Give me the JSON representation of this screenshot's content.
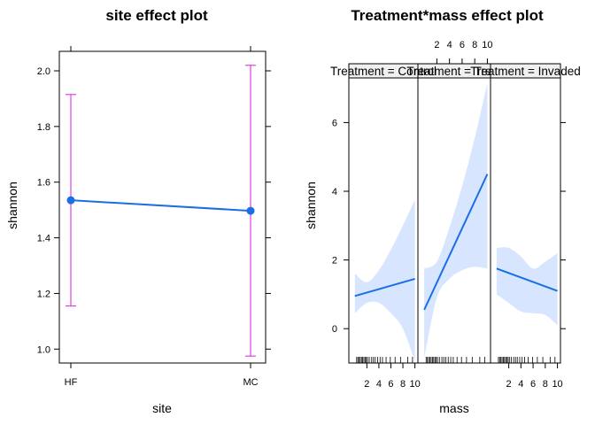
{
  "chart_data": [
    {
      "type": "line",
      "title": "site effect plot",
      "xlabel": "site",
      "ylabel": "shannon",
      "categories": [
        "HF",
        "MC"
      ],
      "series": [
        {
          "values": [
            1.535,
            1.497
          ],
          "lower": [
            1.155,
            0.975
          ],
          "upper": [
            1.915,
            2.02
          ]
        }
      ],
      "ylim": [
        0.95,
        2.07
      ],
      "yticks": [
        1.0,
        1.2,
        1.4,
        1.6,
        1.8,
        2.0
      ],
      "ytick_labels": [
        "1.0",
        "1.2",
        "1.4",
        "1.6",
        "1.8",
        "2.0"
      ],
      "grid": false,
      "colors": {
        "line": "#1a6ee6",
        "errorbar": "#e040e0"
      }
    },
    {
      "type": "line",
      "title": "Treatment*mass effect plot",
      "xlabel": "mass",
      "ylabel": "shannon",
      "panel_prefix": "Treatment = ",
      "xlim": [
        -1,
        10.5
      ],
      "xticks": [
        2,
        4,
        6,
        8,
        10
      ],
      "xtick_labels": [
        "2",
        "4",
        "6",
        "8",
        "10"
      ],
      "ylim": [
        -1,
        7.3
      ],
      "yticks": [
        0,
        2,
        4,
        6
      ],
      "ytick_labels": [
        "0",
        "2",
        "4",
        "6"
      ],
      "panels": [
        {
          "label": "Control",
          "x": [
            0,
            2,
            4,
            6,
            8,
            10
          ],
          "fit": [
            0.95,
            1.05,
            1.15,
            1.25,
            1.35,
            1.45
          ],
          "lower": [
            0.45,
            0.75,
            0.75,
            0.45,
            0.0,
            -0.95
          ],
          "upper": [
            1.6,
            1.35,
            1.7,
            2.3,
            3.0,
            3.75
          ]
        },
        {
          "label": "Treat",
          "x": [
            0,
            2,
            4,
            6,
            8,
            10
          ],
          "fit": [
            0.55,
            1.35,
            2.15,
            2.95,
            3.75,
            4.5
          ],
          "lower": [
            -0.85,
            0.9,
            1.45,
            1.7,
            1.8,
            1.75
          ],
          "upper": [
            1.75,
            1.95,
            2.95,
            4.15,
            5.55,
            7.15
          ]
        },
        {
          "label": "Invaded",
          "x": [
            0,
            2,
            4,
            6,
            8,
            10
          ],
          "fit": [
            1.75,
            1.6,
            1.45,
            1.35,
            1.25,
            1.1
          ],
          "lower": [
            1.0,
            0.75,
            0.5,
            0.45,
            0.4,
            0.1
          ],
          "upper": [
            2.35,
            2.35,
            2.1,
            1.75,
            1.95,
            2.2
          ]
        }
      ],
      "rug": [
        0.3,
        0.5,
        0.7,
        0.9,
        1.1,
        1.3,
        1.5,
        1.7,
        1.9,
        2.1,
        2.4,
        2.8,
        3.1,
        3.4,
        3.8,
        4.2,
        4.6,
        5.2,
        5.9,
        6.7,
        7.6,
        8.8,
        9.6
      ],
      "grid": false,
      "colors": {
        "line": "#1a6ee6",
        "band": "#d7e5ff",
        "strip": "#f0f0f0"
      }
    }
  ]
}
